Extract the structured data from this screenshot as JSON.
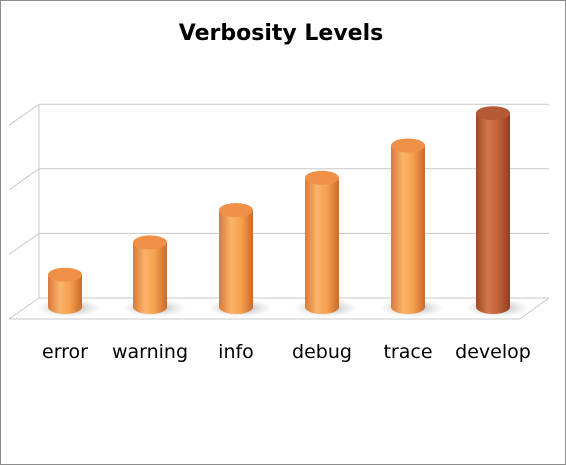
{
  "chart_data": {
    "type": "bar",
    "title": "Verbosity Levels",
    "xlabel": "",
    "ylabel": "",
    "categories": [
      "error",
      "warning",
      "info",
      "debug",
      "trace",
      "develop"
    ],
    "values": [
      1,
      2,
      3,
      4,
      5,
      6
    ],
    "ylim": [
      0,
      6
    ],
    "grid": true,
    "legend": "none",
    "colors": {
      "bar": "#f5a04e",
      "bar_highlight": "#c0623a",
      "grid": "#c8c8c8"
    }
  }
}
